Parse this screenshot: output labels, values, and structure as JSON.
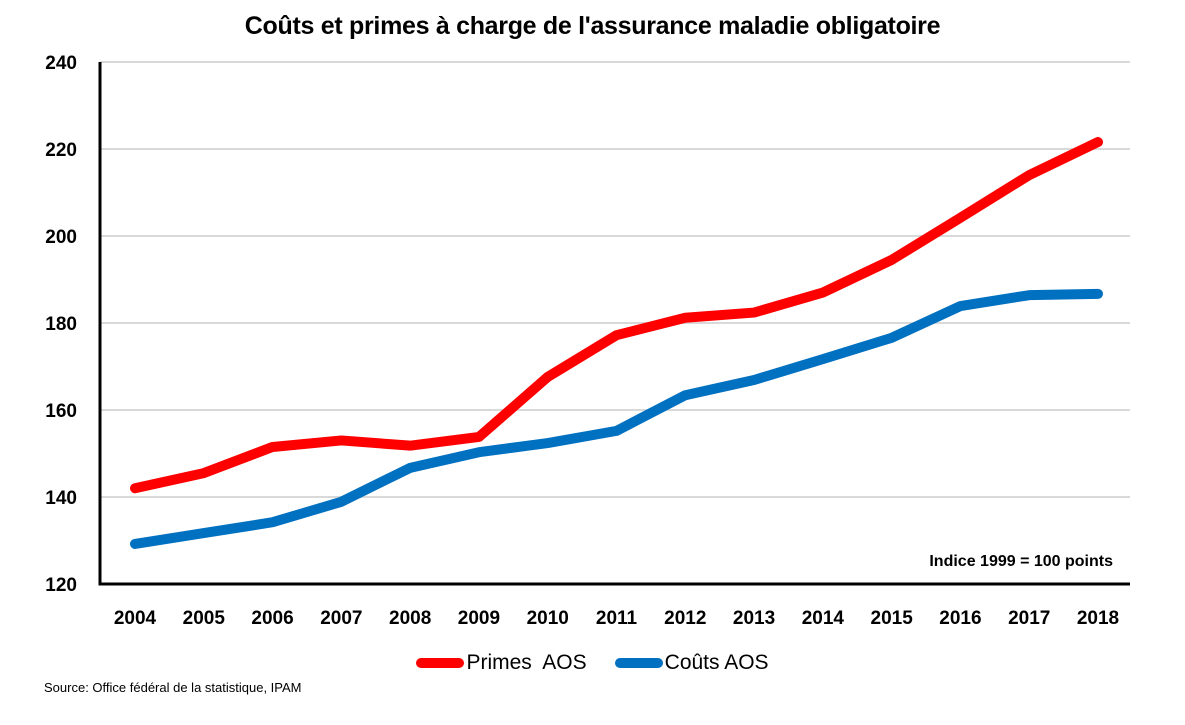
{
  "chart_data": {
    "type": "line",
    "title": "Coûts et primes à charge de l'assurance maladie obligatoire",
    "xlabel": "",
    "ylabel": "",
    "x": [
      "2004",
      "2005",
      "2006",
      "2007",
      "2008",
      "2009",
      "2010",
      "2011",
      "2012",
      "2013",
      "2014",
      "2015",
      "2016",
      "2017",
      "2018"
    ],
    "ylim": [
      120,
      240
    ],
    "yticks": [
      120,
      140,
      160,
      180,
      200,
      220,
      240
    ],
    "grid": true,
    "legend_position": "bottom",
    "annotation": "Indice 1999 = 100 points",
    "series": [
      {
        "name": "Primes  AOS",
        "color": "#ff0000",
        "values": [
          142.0,
          145.5,
          151.5,
          153.0,
          151.8,
          153.8,
          167.6,
          177.2,
          181.2,
          182.4,
          187.0,
          194.5,
          204.2,
          214.0,
          221.6
        ]
      },
      {
        "name": "Coûts AOS",
        "color": "#0070c0",
        "values": [
          129.2,
          131.7,
          134.2,
          138.9,
          146.7,
          150.3,
          152.4,
          155.2,
          163.4,
          166.9,
          171.7,
          176.6,
          183.9,
          186.4,
          186.7
        ]
      }
    ],
    "source": "Source: Office fédéral de la statistique, IPAM"
  }
}
